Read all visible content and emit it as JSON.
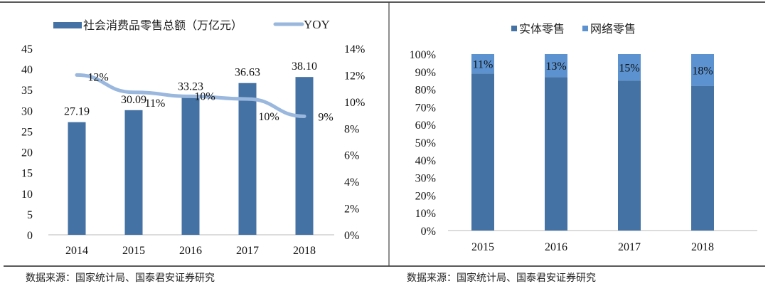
{
  "chart_data": [
    {
      "type": "bar+line",
      "categories": [
        "2014",
        "2015",
        "2016",
        "2017",
        "2018"
      ],
      "series": [
        {
          "name": "社会消费品零售总额（万亿元）",
          "type": "bar",
          "axis": "left",
          "values": [
            27.19,
            30.09,
            33.23,
            36.63,
            38.1
          ],
          "labels": [
            "27.19",
            "30.09",
            "33.23",
            "36.63",
            "38.10"
          ],
          "color": "#4472a4"
        },
        {
          "name": "YOY",
          "type": "line",
          "axis": "right",
          "values": [
            12.0,
            10.7,
            10.4,
            10.2,
            8.9
          ],
          "labels": [
            "12%",
            "11%",
            "10%",
            "10%",
            "9%"
          ],
          "color": "#9ab8de"
        }
      ],
      "left_ylim": [
        0,
        45
      ],
      "left_ticks": [
        "0",
        "5",
        "10",
        "15",
        "20",
        "25",
        "30",
        "35",
        "40",
        "45"
      ],
      "right_ylim": [
        0,
        14
      ],
      "right_ticks": [
        "0%",
        "2%",
        "4%",
        "6%",
        "8%",
        "10%",
        "12%",
        "14%"
      ],
      "legend": "top",
      "grid": false
    },
    {
      "type": "stacked-bar-percent",
      "categories": [
        "2015",
        "2016",
        "2017",
        "2018"
      ],
      "series": [
        {
          "name": "实体零售",
          "values": [
            89,
            87,
            85,
            82
          ],
          "color": "#4472a4"
        },
        {
          "name": "网络零售",
          "values": [
            11,
            13,
            15,
            18
          ],
          "labels": [
            "11%",
            "13%",
            "15%",
            "18%"
          ],
          "color": "#5b92cf"
        }
      ],
      "ylim": [
        0,
        100
      ],
      "yticks": [
        "0%",
        "10%",
        "20%",
        "30%",
        "40%",
        "50%",
        "60%",
        "70%",
        "80%",
        "90%",
        "100%"
      ],
      "legend": "top",
      "grid": false
    }
  ],
  "source_left": "数据来源：国家统计局、国泰君安证券研究",
  "source_right": "数据来源：国家统计局、国泰君安证券研究"
}
